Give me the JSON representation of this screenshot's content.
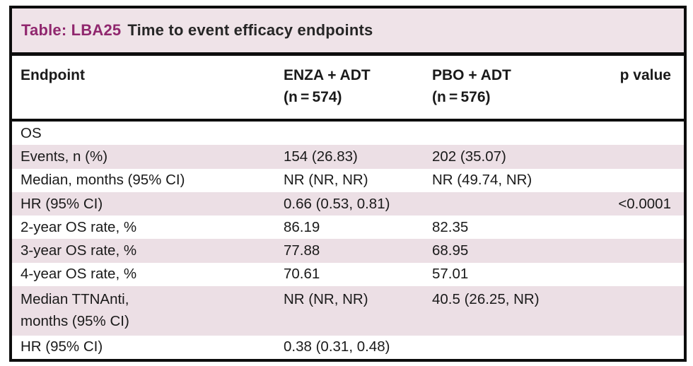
{
  "table": {
    "title": {
      "label": "Table: LBA25",
      "text": "Time to event efficacy endpoints"
    },
    "header": {
      "endpoint": "Endpoint",
      "enza_name": "ENZA + ADT",
      "enza_n": "(n = 574)",
      "pbo_name": "PBO + ADT",
      "pbo_n": "(n = 576)",
      "pvalue": "p value"
    },
    "rows": [
      {
        "endpoint": "OS",
        "enza": "",
        "pbo": "",
        "p": ""
      },
      {
        "endpoint": "Events, n (%)",
        "enza": "154 (26.83)",
        "pbo": "202 (35.07)",
        "p": ""
      },
      {
        "endpoint": "Median, months (95% CI)",
        "enza": "NR (NR, NR)",
        "pbo": "NR (49.74, NR)",
        "p": ""
      },
      {
        "endpoint": "HR (95% CI)",
        "enza": "0.66 (0.53, 0.81)",
        "pbo": "",
        "p": "<0.0001"
      },
      {
        "endpoint": "2-year OS rate, %",
        "enza": "86.19",
        "pbo": "82.35",
        "p": ""
      },
      {
        "endpoint": "3-year OS rate, %",
        "enza": "77.88",
        "pbo": "68.95",
        "p": ""
      },
      {
        "endpoint": "4-year OS rate, %",
        "enza": "70.61",
        "pbo": "57.01",
        "p": ""
      },
      {
        "endpoint": "Median TTNAnti,\nmonths (95% CI)",
        "enza": "NR (NR, NR)",
        "pbo": "40.5 (26.25, NR)",
        "p": ""
      },
      {
        "endpoint": "HR (95% CI)",
        "enza": "0.38 (0.31, 0.48)",
        "pbo": "",
        "p": ""
      }
    ],
    "colors": {
      "accent": "#90276e",
      "title_bg": "#efe3e8",
      "row_shade": "#ecdfe5",
      "border": "#0d0d0d",
      "text": "#1a1a1a"
    }
  }
}
